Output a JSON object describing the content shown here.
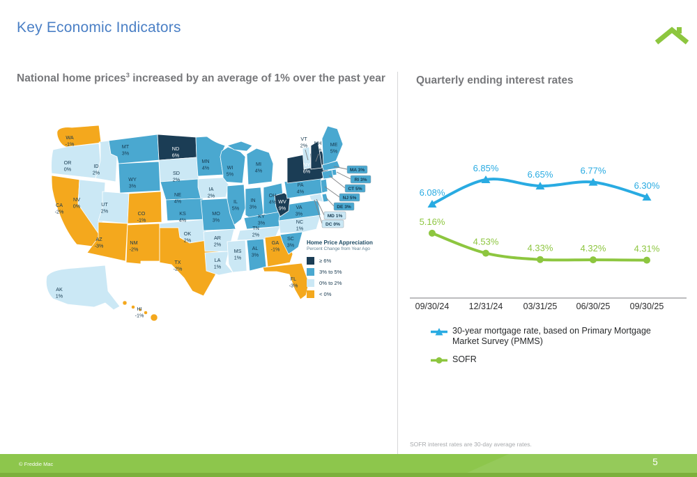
{
  "header": {
    "title": "Key Economic Indicators"
  },
  "left_panel": {
    "heading_pre": "National home prices",
    "heading_sup": "3",
    "heading_post": " increased by an average of 1% over the past year"
  },
  "right_panel": {
    "heading": "Quarterly ending interest rates",
    "footnote": "SOFR interest rates are 30-day average rates."
  },
  "footer": {
    "copyright": "© Freddie Mac",
    "page": "5"
  },
  "brand": {
    "logo_color": "#8dc63f"
  },
  "chart_data": [
    {
      "type": "choropleth",
      "title": "US home price appreciation by state, percent change from year ago",
      "legend": {
        "title": "Home Price Appreciation",
        "subtitle": "Percent Change from Year Ago",
        "items": [
          {
            "category": "ge6",
            "label": "≥ 6%"
          },
          {
            "category": "mid",
            "label": "3% to 5%"
          },
          {
            "category": "low",
            "label": "0% to 2%"
          },
          {
            "category": "neg",
            "label": "< 0%"
          }
        ]
      },
      "colors": {
        "ge6": "#1b3d55",
        "mid": "#4aa8d0",
        "low": "#cbe8f5",
        "neg": "#f4a81d"
      },
      "points": [
        {
          "state": "WA",
          "value": "-1%",
          "category": "neg"
        },
        {
          "state": "OR",
          "value": "0%",
          "category": "low"
        },
        {
          "state": "CA",
          "value": "-2%",
          "category": "neg"
        },
        {
          "state": "NV",
          "value": "0%",
          "category": "low"
        },
        {
          "state": "ID",
          "value": "2%",
          "category": "low"
        },
        {
          "state": "UT",
          "value": "2%",
          "category": "low"
        },
        {
          "state": "AZ",
          "value": "-3%",
          "category": "neg"
        },
        {
          "state": "MT",
          "value": "3%",
          "category": "mid"
        },
        {
          "state": "WY",
          "value": "3%",
          "category": "mid"
        },
        {
          "state": "CO",
          "value": "-1%",
          "category": "neg"
        },
        {
          "state": "NM",
          "value": "-2%",
          "category": "neg"
        },
        {
          "state": "ND",
          "value": "6%",
          "category": "ge6"
        },
        {
          "state": "SD",
          "value": "2%",
          "category": "low"
        },
        {
          "state": "NE",
          "value": "4%",
          "category": "mid"
        },
        {
          "state": "KS",
          "value": "4%",
          "category": "mid"
        },
        {
          "state": "OK",
          "value": "2%",
          "category": "low"
        },
        {
          "state": "TX",
          "value": "-2%",
          "category": "neg"
        },
        {
          "state": "MN",
          "value": "4%",
          "category": "mid"
        },
        {
          "state": "IA",
          "value": "2%",
          "category": "low"
        },
        {
          "state": "MO",
          "value": "3%",
          "category": "mid"
        },
        {
          "state": "AR",
          "value": "2%",
          "category": "low"
        },
        {
          "state": "LA",
          "value": "1%",
          "category": "low"
        },
        {
          "state": "WI",
          "value": "5%",
          "category": "mid"
        },
        {
          "state": "IL",
          "value": "5%",
          "category": "mid"
        },
        {
          "state": "IN",
          "value": "3%",
          "category": "mid"
        },
        {
          "state": "MI",
          "value": "4%",
          "category": "mid"
        },
        {
          "state": "OH",
          "value": "4%",
          "category": "mid"
        },
        {
          "state": "KY",
          "value": "3%",
          "category": "mid"
        },
        {
          "state": "TN",
          "value": "2%",
          "category": "low"
        },
        {
          "state": "MS",
          "value": "1%",
          "category": "low"
        },
        {
          "state": "AL",
          "value": "3%",
          "category": "mid"
        },
        {
          "state": "GA",
          "value": "-1%",
          "category": "neg"
        },
        {
          "state": "FL",
          "value": "-3%",
          "category": "neg"
        },
        {
          "state": "SC",
          "value": "3%",
          "category": "mid"
        },
        {
          "state": "NC",
          "value": "1%",
          "category": "low"
        },
        {
          "state": "VA",
          "value": "3%",
          "category": "mid"
        },
        {
          "state": "WV",
          "value": "9%",
          "category": "ge6"
        },
        {
          "state": "PA",
          "value": "4%",
          "category": "mid"
        },
        {
          "state": "NY",
          "value": "6%",
          "category": "ge6"
        },
        {
          "state": "VT",
          "value": "2%",
          "category": "low"
        },
        {
          "state": "NH",
          "value": "6%",
          "category": "ge6"
        },
        {
          "state": "ME",
          "value": "5%",
          "category": "mid"
        },
        {
          "state": "AK",
          "value": "1%",
          "category": "low"
        },
        {
          "state": "HI",
          "value": "-1%",
          "category": "neg"
        },
        {
          "state": "MA",
          "value": "3%",
          "category": "mid"
        },
        {
          "state": "RI",
          "value": "3%",
          "category": "mid"
        },
        {
          "state": "CT",
          "value": "5%",
          "category": "mid"
        },
        {
          "state": "NJ",
          "value": "5%",
          "category": "mid"
        },
        {
          "state": "DE",
          "value": "3%",
          "category": "mid"
        },
        {
          "state": "MD",
          "value": "1%",
          "category": "low"
        }
      ],
      "callouts": [
        {
          "state": "MA",
          "value": "3%",
          "category": "mid"
        },
        {
          "state": "RI",
          "value": "3%",
          "category": "mid"
        },
        {
          "state": "CT",
          "value": "5%",
          "category": "mid"
        },
        {
          "state": "NJ",
          "value": "5%",
          "category": "mid"
        },
        {
          "state": "DE",
          "value": "3%",
          "category": "mid"
        },
        {
          "state": "MD",
          "value": "1%",
          "category": "low"
        },
        {
          "state": "DC",
          "value": "0%",
          "category": "low"
        }
      ],
      "pointers": [
        {
          "state": "VT",
          "value": "2%"
        },
        {
          "state": "NH",
          "value": "6%"
        }
      ]
    },
    {
      "type": "line",
      "title": "Quarterly ending interest rates",
      "categories": [
        "09/30/24",
        "12/31/24",
        "03/31/25",
        "06/30/25",
        "09/30/25"
      ],
      "series": [
        {
          "name": "30-year mortgage rate, based on Primary Mortgage Market Survey (PMMS)",
          "color": "#29abe2",
          "marker": "triangle",
          "values": [
            6.08,
            6.85,
            6.65,
            6.77,
            6.3
          ]
        },
        {
          "name": "SOFR",
          "color": "#8dc63f",
          "marker": "circle",
          "values": [
            5.16,
            4.53,
            4.33,
            4.32,
            4.31
          ]
        }
      ],
      "ylim": [
        4.0,
        7.2
      ],
      "grid": false,
      "legend_position": "bottom",
      "label_format": "0.00%"
    }
  ]
}
